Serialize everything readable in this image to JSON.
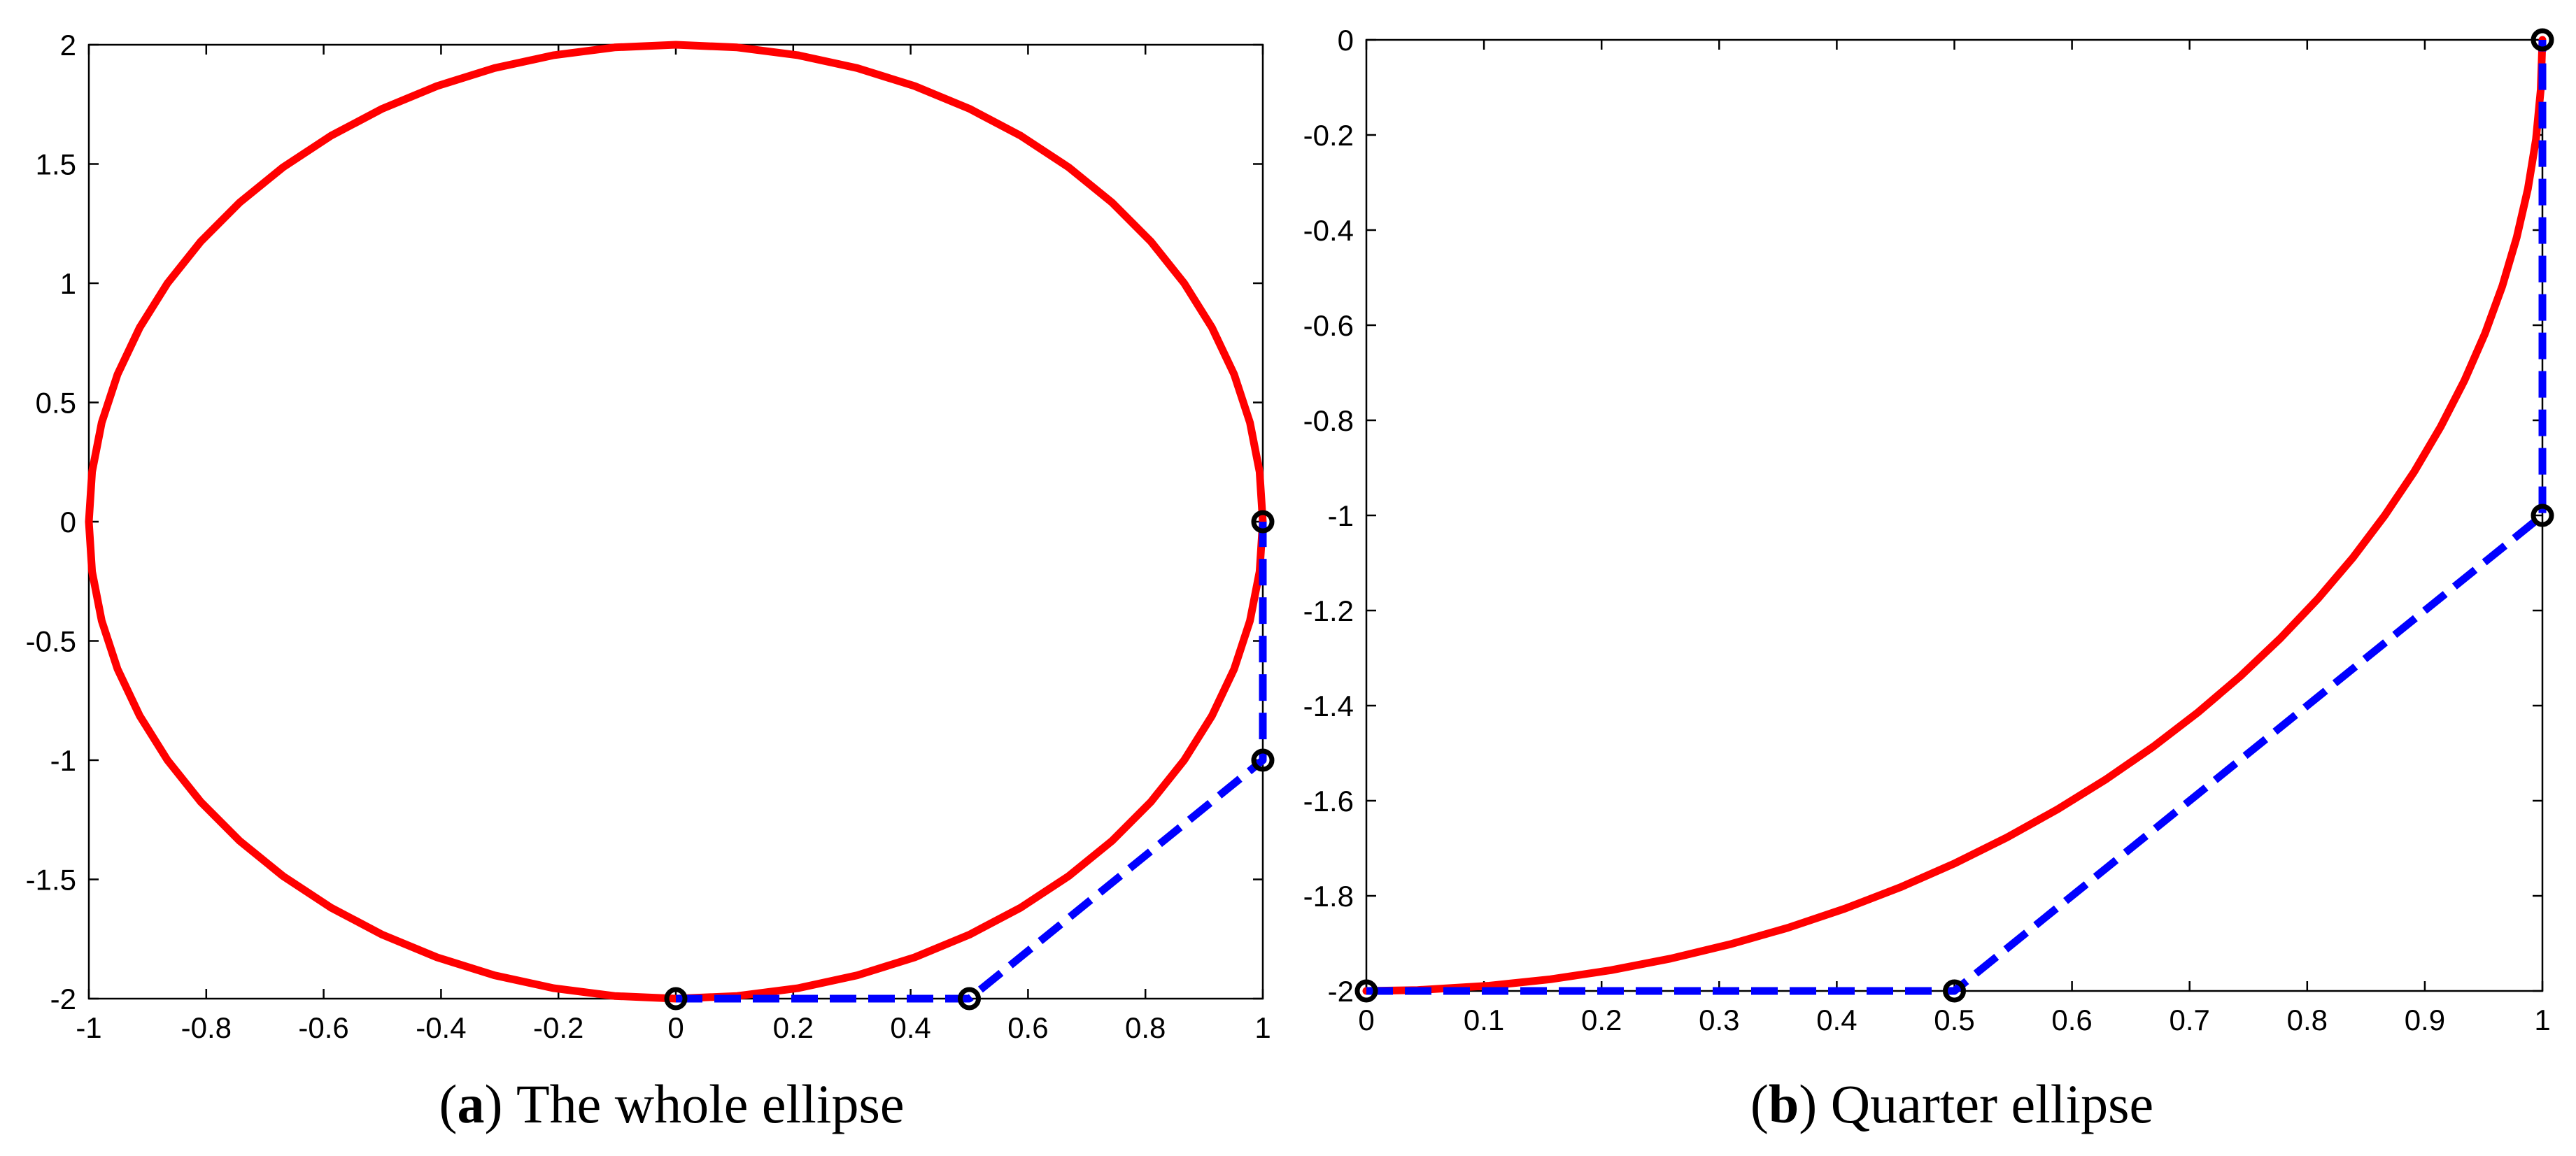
{
  "chart_data": [
    {
      "type": "line",
      "caption_letter": "a",
      "caption_text": "The whole ellipse",
      "xlim": [
        -1,
        1
      ],
      "ylim": [
        -2,
        2
      ],
      "xticks": [
        "-1",
        "-0.8",
        "-0.6",
        "-0.4",
        "-0.2",
        "0",
        "0.2",
        "0.4",
        "0.6",
        "0.8",
        "1"
      ],
      "yticks": [
        "2",
        "1.5",
        "1",
        "0.5",
        "0",
        "-0.5",
        "-1",
        "-1.5",
        "-2"
      ],
      "grid": false,
      "series": [
        {
          "style": "solid",
          "color": "#ff0000",
          "x": [
            1,
            0.9945,
            0.9781,
            0.9511,
            0.9135,
            0.866,
            0.809,
            0.7431,
            0.6691,
            0.5878,
            0.5,
            0.4067,
            0.309,
            0.2079,
            0.1045,
            0,
            -0.1045,
            -0.2079,
            -0.309,
            -0.4067,
            -0.5,
            -0.5878,
            -0.6691,
            -0.7431,
            -0.809,
            -0.866,
            -0.9135,
            -0.9511,
            -0.9781,
            -0.9945,
            -1,
            -0.9945,
            -0.9781,
            -0.9511,
            -0.9135,
            -0.866,
            -0.809,
            -0.7431,
            -0.6691,
            -0.5878,
            -0.5,
            -0.4067,
            -0.309,
            -0.2079,
            -0.1045,
            0,
            0.1045,
            0.2079,
            0.309,
            0.4067,
            0.5,
            0.5878,
            0.6691,
            0.7431,
            0.809,
            0.866,
            0.9135,
            0.9511,
            0.9781,
            0.9945,
            1
          ],
          "y": [
            0,
            0.209,
            0.4158,
            0.618,
            0.8135,
            1,
            1.1756,
            1.3383,
            1.4863,
            1.618,
            1.7321,
            1.8271,
            1.9021,
            1.9563,
            1.989,
            2,
            1.989,
            1.9563,
            1.9021,
            1.8271,
            1.7321,
            1.618,
            1.4863,
            1.3383,
            1.1756,
            1,
            0.8135,
            0.618,
            0.4158,
            0.209,
            0,
            -0.209,
            -0.4158,
            -0.618,
            -0.8135,
            -1,
            -1.1756,
            -1.3383,
            -1.4863,
            -1.618,
            -1.7321,
            -1.8271,
            -1.9021,
            -1.9563,
            -1.989,
            -2,
            -1.989,
            -1.9563,
            -1.9021,
            -1.8271,
            -1.7321,
            -1.618,
            -1.4863,
            -1.3383,
            -1.1756,
            -1,
            -0.8135,
            -0.618,
            -0.4158,
            -0.209,
            0
          ]
        },
        {
          "style": "dashed",
          "color": "#0000ff",
          "x": [
            0,
            0.5,
            1,
            1
          ],
          "y": [
            -2,
            -2,
            -1,
            0
          ]
        }
      ],
      "markers": {
        "x": [
          0,
          0.5,
          1,
          1
        ],
        "y": [
          -2,
          -2,
          -1,
          0
        ]
      }
    },
    {
      "type": "line",
      "caption_letter": "b",
      "caption_text": "Quarter ellipse",
      "xlim": [
        0,
        1
      ],
      "ylim": [
        -2,
        0
      ],
      "xticks": [
        "0",
        "0.1",
        "0.2",
        "0.3",
        "0.4",
        "0.5",
        "0.6",
        "0.7",
        "0.8",
        "0.9",
        "1"
      ],
      "yticks": [
        "0",
        "-0.2",
        "-0.4",
        "-0.6",
        "-0.8",
        "-1",
        "-1.2",
        "-1.4",
        "-1.6",
        "-1.8",
        "-2"
      ],
      "grid": false,
      "series": [
        {
          "style": "solid",
          "color": "#ff0000",
          "x": [
            0,
            0.0436,
            0.1045,
            0.1564,
            0.2079,
            0.2588,
            0.309,
            0.3584,
            0.4067,
            0.454,
            0.5,
            0.5446,
            0.5878,
            0.6293,
            0.6691,
            0.7071,
            0.7431,
            0.7771,
            0.809,
            0.8387,
            0.866,
            0.891,
            0.9135,
            0.9336,
            0.9511,
            0.9659,
            0.9781,
            0.9877,
            0.9945,
            0.9986,
            1
          ],
          "y": [
            -2,
            -1.9981,
            -1.989,
            -1.9754,
            -1.9563,
            -1.9319,
            -1.9021,
            -1.8672,
            -1.8271,
            -1.782,
            -1.7321,
            -1.6773,
            -1.618,
            -1.5543,
            -1.4863,
            -1.4142,
            -1.3383,
            -1.2587,
            -1.1756,
            -1.0893,
            -1,
            -0.908,
            -0.8135,
            -0.7167,
            -0.618,
            -0.5176,
            -0.4158,
            -0.3129,
            -0.209,
            -0.1047,
            0
          ]
        },
        {
          "style": "dashed",
          "color": "#0000ff",
          "x": [
            0,
            0.5,
            1,
            1
          ],
          "y": [
            -2,
            -2,
            -1,
            0
          ]
        }
      ],
      "markers": {
        "x": [
          0,
          0.5,
          1,
          1
        ],
        "y": [
          -2,
          -2,
          -1,
          0
        ]
      }
    }
  ]
}
